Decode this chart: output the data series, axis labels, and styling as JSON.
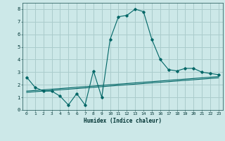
{
  "xlabel": "Humidex (Indice chaleur)",
  "background_color": "#cce8e8",
  "grid_color": "#aacccc",
  "line_color": "#006666",
  "x_values": [
    0,
    1,
    2,
    3,
    4,
    5,
    6,
    7,
    8,
    9,
    10,
    11,
    12,
    13,
    14,
    15,
    16,
    17,
    18,
    19,
    20,
    21,
    22,
    23
  ],
  "main_curve": [
    2.6,
    1.8,
    1.5,
    1.5,
    1.1,
    0.4,
    1.3,
    0.4,
    3.1,
    1.0,
    5.6,
    7.4,
    7.5,
    8.0,
    7.8,
    5.6,
    4.0,
    3.2,
    3.1,
    3.3,
    3.3,
    3.0,
    2.9,
    2.8
  ],
  "line2": [
    1.5,
    1.55,
    1.6,
    1.65,
    1.7,
    1.75,
    1.8,
    1.85,
    1.9,
    1.95,
    2.0,
    2.05,
    2.1,
    2.15,
    2.2,
    2.25,
    2.3,
    2.35,
    2.4,
    2.45,
    2.5,
    2.55,
    2.6,
    2.65
  ],
  "line3": [
    1.4,
    1.45,
    1.5,
    1.55,
    1.6,
    1.65,
    1.7,
    1.75,
    1.8,
    1.85,
    1.9,
    1.95,
    2.0,
    2.05,
    2.1,
    2.15,
    2.2,
    2.25,
    2.3,
    2.35,
    2.4,
    2.45,
    2.5,
    2.55
  ],
  "ylim": [
    0,
    8.5
  ],
  "xlim": [
    -0.5,
    23.5
  ],
  "yticks": [
    0,
    1,
    2,
    3,
    4,
    5,
    6,
    7,
    8
  ],
  "xticks": [
    0,
    1,
    2,
    3,
    4,
    5,
    6,
    7,
    8,
    9,
    10,
    11,
    12,
    13,
    14,
    15,
    16,
    17,
    18,
    19,
    20,
    21,
    22,
    23
  ],
  "xtick_labels": [
    "0",
    "1",
    "2",
    "3",
    "4",
    "5",
    "6",
    "7",
    "8",
    "9",
    "10",
    "11",
    "12",
    "13",
    "14",
    "15",
    "16",
    "17",
    "18",
    "19",
    "20",
    "21",
    "22",
    "23"
  ]
}
